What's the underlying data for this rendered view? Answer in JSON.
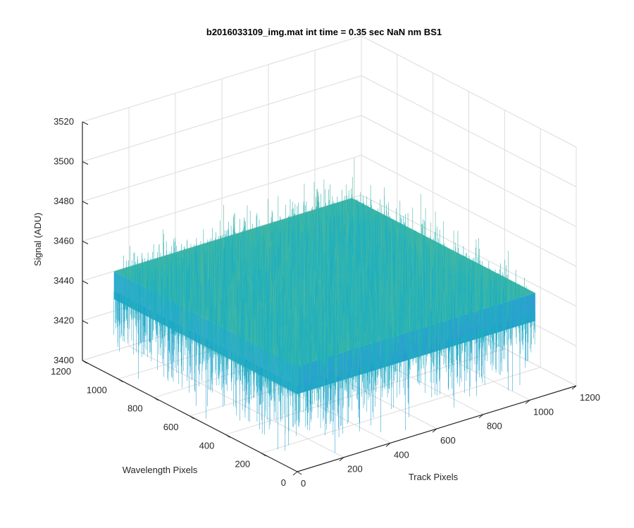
{
  "chart_data": {
    "type": "surface",
    "title": "b2016033109_img.mat int time = 0.35 sec  NaN nm BS1",
    "xlabel": "Track Pixels",
    "ylabel": "Wavelength Pixels",
    "zlabel": "Signal (ADU)",
    "xlim": [
      0,
      1200
    ],
    "ylim": [
      0,
      1200
    ],
    "zlim": [
      3400,
      3520
    ],
    "x_ticks": [
      "0",
      "200",
      "400",
      "600",
      "800",
      "1000",
      "1200"
    ],
    "y_ticks": [
      "0",
      "200",
      "400",
      "600",
      "800",
      "1000",
      "1200"
    ],
    "z_ticks": [
      "3400",
      "3420",
      "3440",
      "3460",
      "3480",
      "3500",
      "3520"
    ],
    "grid": true,
    "colormap": "parula",
    "surface": {
      "x_range": [
        0,
        1024
      ],
      "y_range": [
        0,
        1024
      ],
      "mean_signal": 3447,
      "noise_spread": 10,
      "min_signal": 3415,
      "max_signal": 3505
    },
    "colors": {
      "axis": "#262626",
      "grid": "#dcdcdc",
      "surface_low": "#0f88d6",
      "surface_mid": "#21b3bd",
      "surface_high": "#e3c33a"
    }
  }
}
